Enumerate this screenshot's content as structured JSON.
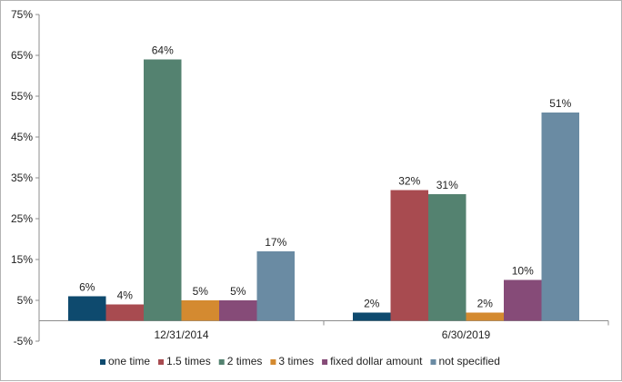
{
  "chart_data": {
    "type": "bar",
    "title": "",
    "xlabel": "",
    "ylabel": "",
    "categories": [
      "12/31/2014",
      "6/30/2019"
    ],
    "ylim": [
      -5,
      75
    ],
    "yticks": [
      -5,
      5,
      15,
      25,
      35,
      45,
      55,
      65,
      75
    ],
    "ytick_labels": [
      "-5%",
      "5%",
      "15%",
      "25%",
      "35%",
      "45%",
      "55%",
      "65%",
      "75%"
    ],
    "grid": false,
    "legend_position": "bottom",
    "series": [
      {
        "name": "one time",
        "color": "#0e4a6e",
        "values": [
          6,
          2
        ],
        "labels": [
          "6%",
          "2%"
        ]
      },
      {
        "name": "1.5 times",
        "color": "#a84b50",
        "values": [
          4,
          32
        ],
        "labels": [
          "4%",
          "32%"
        ]
      },
      {
        "name": "2 times",
        "color": "#548270",
        "values": [
          64,
          31
        ],
        "labels": [
          "64%",
          "31%"
        ]
      },
      {
        "name": "3 times",
        "color": "#d48a30",
        "values": [
          5,
          2
        ],
        "labels": [
          "5%",
          "2%"
        ]
      },
      {
        "name": "fixed dollar amount",
        "color": "#864b78",
        "values": [
          5,
          10
        ],
        "labels": [
          "5%",
          "10%"
        ]
      },
      {
        "name": "not specified",
        "color": "#6a8ba3",
        "values": [
          17,
          51
        ],
        "labels": [
          "17%",
          "51%"
        ]
      }
    ]
  }
}
